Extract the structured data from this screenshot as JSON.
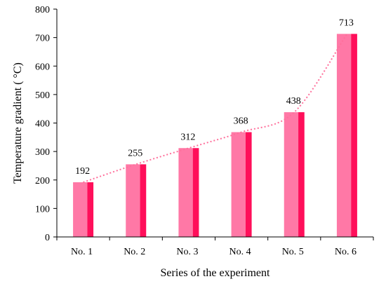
{
  "chart_data": {
    "type": "bar",
    "title": "",
    "xlabel": "Series of the experiment",
    "ylabel": "Temperature gradient ( °C)",
    "categories": [
      "No. 1",
      "No. 2",
      "No. 3",
      "No. 4",
      "No. 5",
      "No. 6"
    ],
    "values": [
      192,
      255,
      312,
      368,
      438,
      713
    ],
    "data_labels": [
      "192",
      "255",
      "312",
      "368",
      "438",
      "713"
    ],
    "ylim": [
      0,
      800
    ],
    "yticks": [
      0,
      100,
      200,
      300,
      400,
      500,
      600,
      700,
      800
    ],
    "grid": false,
    "legend": "none",
    "trendline": {
      "style": "dotted",
      "kind": "exponential"
    },
    "colors": {
      "bar_light": "#FF78A6",
      "bar_dark": "#FF0F5A",
      "trendline": "#FF6F9B",
      "axis": "#000000"
    }
  }
}
